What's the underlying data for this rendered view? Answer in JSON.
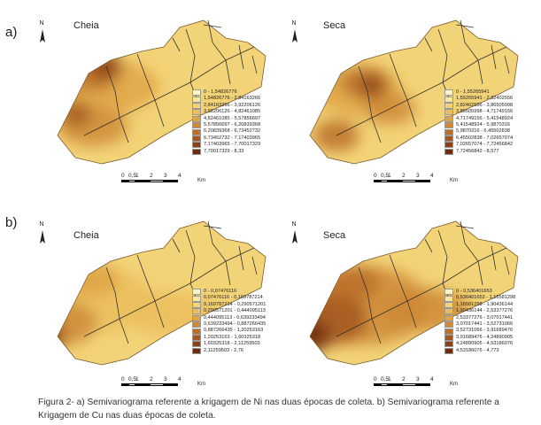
{
  "panels": [
    {
      "label": "a)",
      "maps": [
        {
          "title": "Cheia",
          "legend": [
            "0 - 1,54826776",
            "1,54826776 - 2,84163266",
            "2,84163266 - 3,92206126",
            "3,92206126 - 4,82461085",
            "4,82461085 - 5,57856697",
            "5,57856697 - 6,20839368",
            "6,20839368 - 6,73452732",
            "6,73452732 - 7,17403965",
            "7,17403965 - 7,70017329",
            "7,70017329 - 8,33"
          ]
        },
        {
          "title": "Seca",
          "legend": [
            "0 - 1,55265941",
            "1,55265941 - 2,82402556",
            "2,82402556 - 3,86505998",
            "3,86505998 - 4,71749156",
            "4,71749156 - 5,41548924",
            "5,41548924 - 5,9870316",
            "5,9870316 - 6,45502838",
            "6,45502838 - 7,02657074",
            "7,02657074 - 7,72456842",
            "7,72456842 - 8,577"
          ]
        }
      ]
    },
    {
      "label": "b)",
      "maps": [
        {
          "title": "Cheia",
          "legend": [
            "0 - 0,07476116",
            "0,07476116 - 0,169787214",
            "0,169787214 - 0,290571201",
            "0,290571201 - 0,444095113",
            "0,444095113 - 0,639233494",
            "0,639233494 - 0,887266435",
            "0,887266435 - 1,20253163",
            "1,20253163 - 1,60325318",
            "1,60325318 - 2,11259503",
            "2,11259503 - 2,76"
          ]
        },
        {
          "title": "Seca",
          "legend": [
            "0 - 0,536401653",
            "0,536401653 - 1,16581298",
            "1,16581298 - 1,90436144",
            "1,90436144 - 2,53377276",
            "2,53377276 - 3,07017441",
            "3,07017441 - 3,52731066",
            "3,52731066 - 3,91689476",
            "3,91689476 - 4,24890905",
            "4,24890905 - 4,53186076",
            "4,53186076 - 4,773"
          ]
        }
      ]
    }
  ],
  "ramp": [
    "#fdf6c4",
    "#f9e79a",
    "#f3d377",
    "#ebbd5c",
    "#dfa346",
    "#cf8a36",
    "#bb7029",
    "#a3561e",
    "#8b3f16",
    "#6e2b0f"
  ],
  "scalebar": {
    "ticks": [
      "0",
      "0,5",
      "1",
      "2",
      "3",
      "4"
    ],
    "unit": "Km"
  },
  "north_symbol": "N",
  "caption": {
    "line1": "Figura 2- a) Semivariograma referente a krigagem de Ni nas duas épocas de coleta. b) Semivariograma referente a",
    "line2": "Krigagem de Cu nas duas épocas de coleta."
  }
}
